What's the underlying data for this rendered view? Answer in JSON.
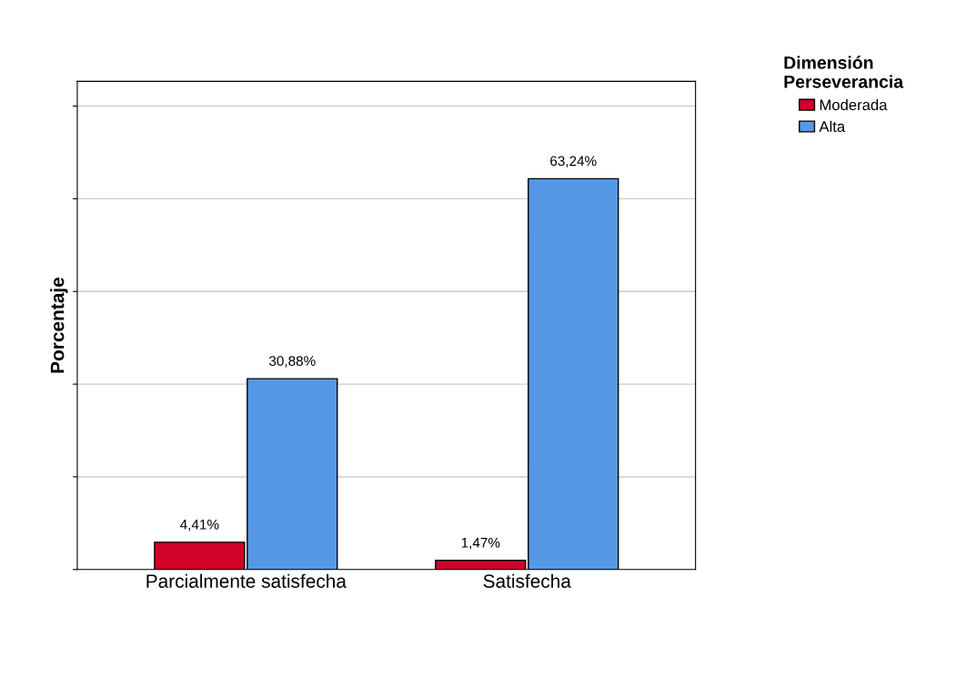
{
  "chart_data": {
    "type": "bar",
    "ylabel": "Porcentaje",
    "legend_title": "Dimensión\nPerseverancia",
    "categories": [
      "Parcialmente satisfecha",
      "Satisfecha"
    ],
    "series": [
      {
        "name": "Moderada",
        "color": "#d0022a",
        "values": [
          4.41,
          1.47
        ],
        "value_labels": [
          "4,41%",
          "1,47%"
        ]
      },
      {
        "name": "Alta",
        "color": "#5698e3",
        "values": [
          30.88,
          63.24
        ],
        "value_labels": [
          "30,88%",
          "63,24%"
        ]
      }
    ],
    "ylim": [
      0,
      79
    ],
    "yticks": [
      {
        "value": 0,
        "label": null
      },
      {
        "value": 15,
        "label": null
      },
      {
        "value": 30,
        "label": null
      },
      {
        "value": 45,
        "label": null
      },
      {
        "value": 60,
        "label": null
      },
      {
        "value": 75,
        "label": null
      }
    ],
    "tick_labels": "x",
    "grid": "y",
    "legend": "top right"
  }
}
